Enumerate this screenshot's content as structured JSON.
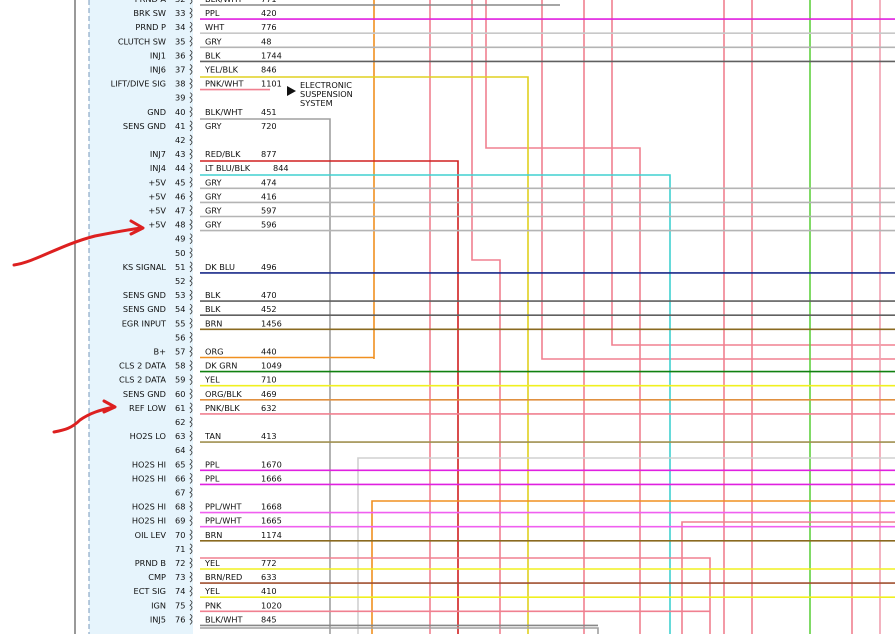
{
  "rows": [
    {
      "pin": "32",
      "func": "PRND A",
      "color": "BLK/WHT",
      "circuit": "771",
      "hex": "#888888"
    },
    {
      "pin": "33",
      "func": "BRK SW",
      "color": "PPL",
      "circuit": "420",
      "hex": "#e020e0"
    },
    {
      "pin": "34",
      "func": "PRND P",
      "color": "WHT",
      "circuit": "776",
      "hex": "#c8c8c8"
    },
    {
      "pin": "35",
      "func": "CLUTCH SW",
      "color": "GRY",
      "circuit": "48",
      "hex": "#b4b4b4"
    },
    {
      "pin": "36",
      "func": "INJ1",
      "color": "BLK",
      "circuit": "1744",
      "hex": "#606060"
    },
    {
      "pin": "37",
      "func": "INJ6",
      "color": "YEL/BLK",
      "circuit": "846",
      "hex": "#e0d020"
    },
    {
      "pin": "38",
      "func": "LIFT/DIVE SIG",
      "color": "PNK/WHT",
      "circuit": "1101",
      "hex": "#f08090"
    },
    {
      "pin": "39",
      "func": "",
      "color": "",
      "circuit": "",
      "hex": ""
    },
    {
      "pin": "40",
      "func": "GND",
      "color": "BLK/WHT",
      "circuit": "451",
      "hex": "#a0a0a0"
    },
    {
      "pin": "41",
      "func": "SENS GND",
      "color": "GRY",
      "circuit": "720",
      "hex": "#b4b4b4"
    },
    {
      "pin": "42",
      "func": "",
      "color": "",
      "circuit": "",
      "hex": ""
    },
    {
      "pin": "43",
      "func": "INJ7",
      "color": "RED/BLK",
      "circuit": "877",
      "hex": "#d02020"
    },
    {
      "pin": "44",
      "func": "INJ4",
      "color": "LT BLU/BLK",
      "circuit": "844",
      "hex": "#40d0d0"
    },
    {
      "pin": "45",
      "func": "+5V",
      "color": "GRY",
      "circuit": "474",
      "hex": "#b4b4b4"
    },
    {
      "pin": "46",
      "func": "+5V",
      "color": "GRY",
      "circuit": "416",
      "hex": "#b4b4b4"
    },
    {
      "pin": "47",
      "func": "+5V",
      "color": "GRY",
      "circuit": "597",
      "hex": "#b4b4b4"
    },
    {
      "pin": "48",
      "func": "+5V",
      "color": "GRY",
      "circuit": "596",
      "hex": "#b4b4b4"
    },
    {
      "pin": "49",
      "func": "",
      "color": "",
      "circuit": "",
      "hex": ""
    },
    {
      "pin": "50",
      "func": "",
      "color": "",
      "circuit": "",
      "hex": ""
    },
    {
      "pin": "51",
      "func": "KS SIGNAL",
      "color": "DK BLU",
      "circuit": "496",
      "hex": "#1a2a8a"
    },
    {
      "pin": "52",
      "func": "",
      "color": "",
      "circuit": "",
      "hex": ""
    },
    {
      "pin": "53",
      "func": "SENS GND",
      "color": "BLK",
      "circuit": "470",
      "hex": "#606060"
    },
    {
      "pin": "54",
      "func": "SENS GND",
      "color": "BLK",
      "circuit": "452",
      "hex": "#606060"
    },
    {
      "pin": "55",
      "func": "EGR INPUT",
      "color": "BRN",
      "circuit": "1456",
      "hex": "#8a6a20"
    },
    {
      "pin": "56",
      "func": "",
      "color": "",
      "circuit": "",
      "hex": ""
    },
    {
      "pin": "57",
      "func": "B+",
      "color": "ORG",
      "circuit": "440",
      "hex": "#f09020"
    },
    {
      "pin": "58",
      "func": "CLS 2 DATA",
      "color": "DK GRN",
      "circuit": "1049",
      "hex": "#108010"
    },
    {
      "pin": "59",
      "func": "CLS 2 DATA",
      "color": "YEL",
      "circuit": "710",
      "hex": "#f0f020"
    },
    {
      "pin": "60",
      "func": "SENS GND",
      "color": "ORG/BLK",
      "circuit": "469",
      "hex": "#e09040"
    },
    {
      "pin": "61",
      "func": "REF LOW",
      "color": "PNK/BLK",
      "circuit": "632",
      "hex": "#f08090"
    },
    {
      "pin": "62",
      "func": "",
      "color": "",
      "circuit": "",
      "hex": ""
    },
    {
      "pin": "63",
      "func": "HO2S LO",
      "color": "TAN",
      "circuit": "413",
      "hex": "#a09050"
    },
    {
      "pin": "64",
      "func": "",
      "color": "",
      "circuit": "",
      "hex": ""
    },
    {
      "pin": "65",
      "func": "HO2S HI",
      "color": "PPL",
      "circuit": "1670",
      "hex": "#e020e0"
    },
    {
      "pin": "66",
      "func": "HO2S HI",
      "color": "PPL",
      "circuit": "1666",
      "hex": "#e020e0"
    },
    {
      "pin": "67",
      "func": "",
      "color": "",
      "circuit": "",
      "hex": ""
    },
    {
      "pin": "68",
      "func": "HO2S HI",
      "color": "PPL/WHT",
      "circuit": "1668",
      "hex": "#f060f0"
    },
    {
      "pin": "69",
      "func": "HO2S HI",
      "color": "PPL/WHT",
      "circuit": "1665",
      "hex": "#f060f0"
    },
    {
      "pin": "70",
      "func": "OIL LEV",
      "color": "BRN",
      "circuit": "1174",
      "hex": "#8a6a20"
    },
    {
      "pin": "71",
      "func": "",
      "color": "",
      "circuit": "",
      "hex": ""
    },
    {
      "pin": "72",
      "func": "PRND B",
      "color": "YEL",
      "circuit": "772",
      "hex": "#f0f020"
    },
    {
      "pin": "73",
      "func": "CMP",
      "color": "BRN/RED",
      "circuit": "633",
      "hex": "#a05030"
    },
    {
      "pin": "74",
      "func": "ECT SIG",
      "color": "YEL",
      "circuit": "410",
      "hex": "#f0f020"
    },
    {
      "pin": "75",
      "func": "IGN",
      "color": "PNK",
      "circuit": "1020",
      "hex": "#f08090"
    },
    {
      "pin": "76",
      "func": "INJ5",
      "color": "BLK/WHT",
      "circuit": "845",
      "hex": "#888888"
    }
  ],
  "annotation": {
    "lines": [
      "ELECTRONIC",
      "SUSPENSION",
      "SYSTEM"
    ]
  },
  "colors": {
    "connector_bg": "#e6f4fc",
    "marker": "#dd2020"
  }
}
